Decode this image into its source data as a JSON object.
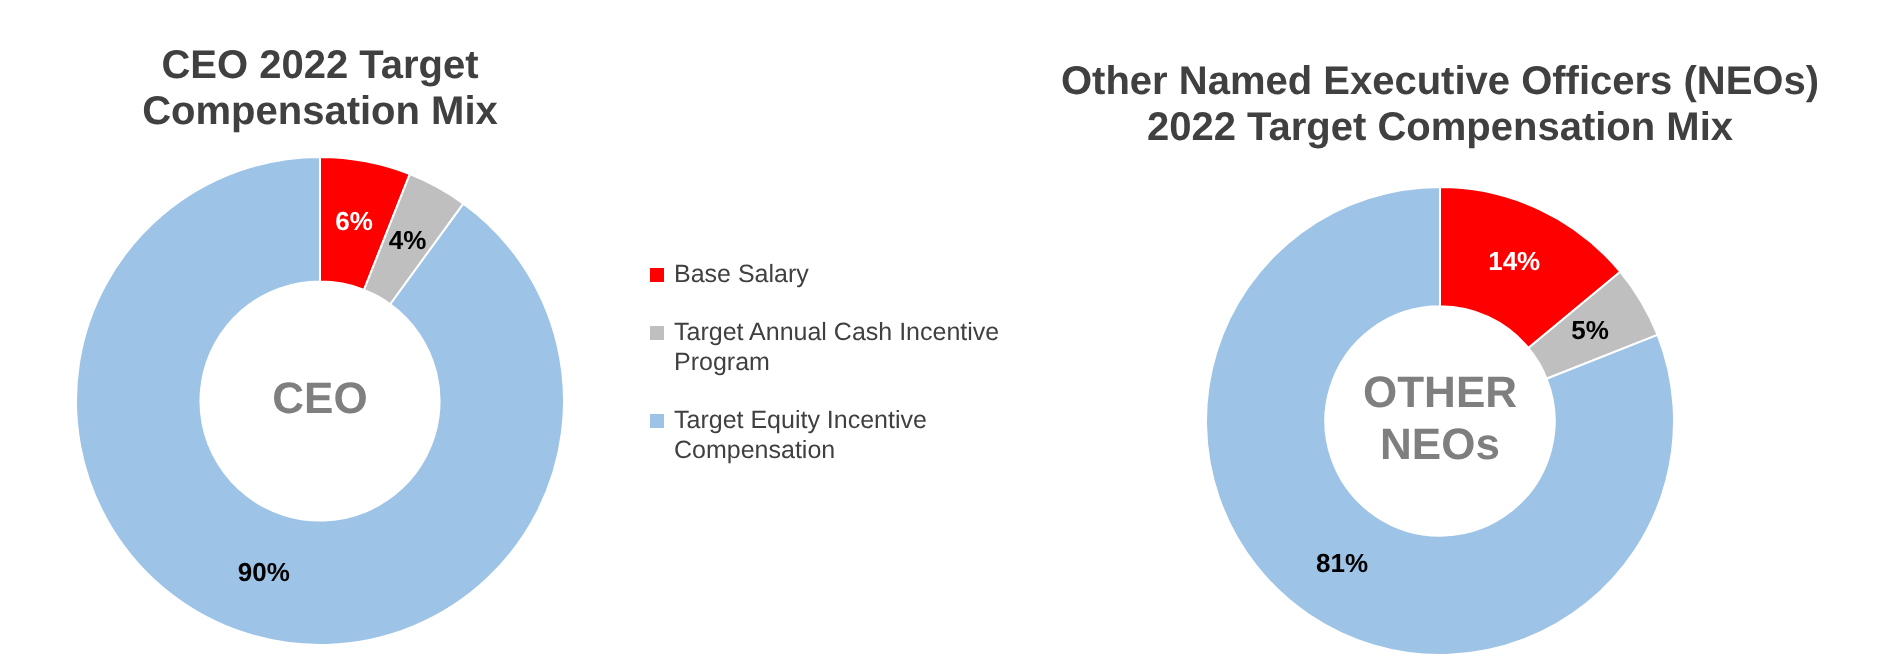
{
  "chart_data": [
    {
      "type": "donut",
      "title": "CEO 2022 Target Compensation Mix",
      "categories": [
        "Base Salary",
        "Target Annual Cash Incentive Program",
        "Target Equity Incentive Compensation"
      ],
      "values": [
        6,
        4,
        90
      ],
      "colors": [
        "#ff0000",
        "#bfbfbf",
        "#9dc3e6"
      ],
      "value_labels": [
        "6%",
        "4%",
        "90%"
      ],
      "annotations": [
        "CEO"
      ],
      "legend": "right"
    },
    {
      "type": "donut",
      "title": "Other Named Executive Officers (NEOs) 2022 Target Compensation Mix",
      "categories": [
        null,
        null,
        null
      ],
      "values": [
        14,
        5,
        81
      ],
      "colors": [
        "#ff0000",
        "#bfbfbf",
        "#9dc3e6"
      ],
      "value_labels": [
        "14%",
        "5%",
        "81%"
      ],
      "annotations": [
        "OTHER NEOs"
      ]
    }
  ]
}
